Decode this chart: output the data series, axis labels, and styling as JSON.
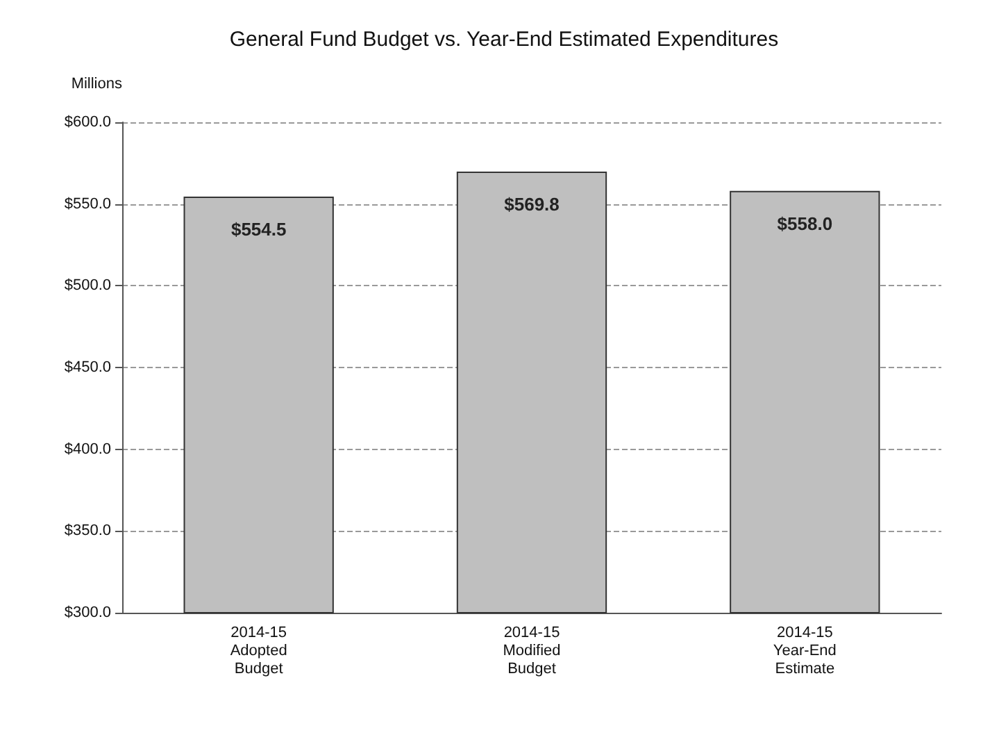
{
  "chart_data": {
    "type": "bar",
    "title": "General Fund Budget vs. Year-End Estimated Expenditures",
    "ylabel": "Millions",
    "categories": [
      "2014-15\nAdopted\nBudget",
      "2014-15\nModified\nBudget",
      "2014-15\nYear-End\nEstimate"
    ],
    "values": [
      554.5,
      569.8,
      558.0
    ],
    "color": "#bfbfbf",
    "value_labels": [
      "$554.5",
      "$569.8",
      "$558.0"
    ],
    "ylim": [
      300,
      600
    ],
    "yticks": [
      {
        "value": 300,
        "label": "$300.0"
      },
      {
        "value": 350,
        "label": "$350.0"
      },
      {
        "value": 400,
        "label": "$400.0"
      },
      {
        "value": 450,
        "label": "$450.0"
      },
      {
        "value": 500,
        "label": "$500.0"
      },
      {
        "value": 550,
        "label": "$550.0"
      },
      {
        "value": 600,
        "label": "$600.0"
      }
    ],
    "grid": "y"
  }
}
